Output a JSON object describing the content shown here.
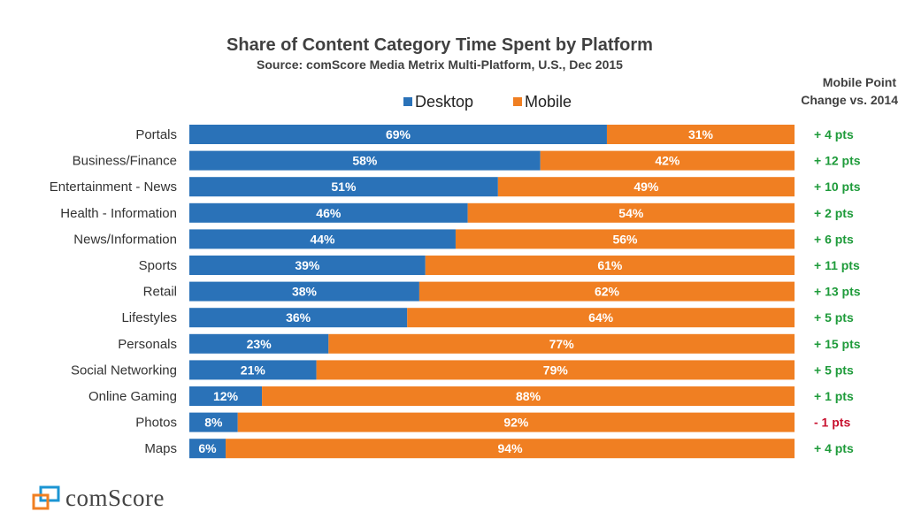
{
  "chart_data": {
    "type": "bar",
    "stacked": true,
    "orientation": "horizontal",
    "title": "Share of Content Category Time Spent by Platform",
    "subtitle": "Source: comScore Media Metrix Multi-Platform, U.S., Dec 2015",
    "categories": [
      "Portals",
      "Business/Finance",
      "Entertainment - News",
      "Health - Information",
      "News/Information",
      "Sports",
      "Retail",
      "Lifestyles",
      "Personals",
      "Social Networking",
      "Online Gaming",
      "Photos",
      "Maps"
    ],
    "series": [
      {
        "name": "Desktop",
        "color": "#2a72b8",
        "values": [
          69,
          58,
          51,
          46,
          44,
          39,
          38,
          36,
          23,
          21,
          12,
          8,
          6
        ]
      },
      {
        "name": "Mobile",
        "color": "#f07f22",
        "values": [
          31,
          42,
          49,
          54,
          56,
          61,
          62,
          64,
          77,
          79,
          88,
          92,
          94
        ]
      }
    ],
    "xlim": [
      0,
      100
    ],
    "legend": "top",
    "change_header": [
      "Mobile Point",
      "Change vs. 2014"
    ],
    "change_labels": [
      "+ 4 pts",
      "+ 12 pts",
      "+ 10 pts",
      "+ 2 pts",
      "+ 6 pts",
      "+ 11 pts",
      "+ 13 pts",
      "+ 5 pts",
      "+ 15 pts",
      "+ 5 pts",
      "+ 1 pts",
      "- 1 pts",
      "+ 4 pts"
    ],
    "change_values": [
      4,
      12,
      10,
      2,
      6,
      11,
      13,
      5,
      15,
      5,
      1,
      -1,
      4
    ],
    "positive_color": "#1e9b3a",
    "negative_color": "#c8102e"
  },
  "logo": {
    "text": "comScore"
  }
}
